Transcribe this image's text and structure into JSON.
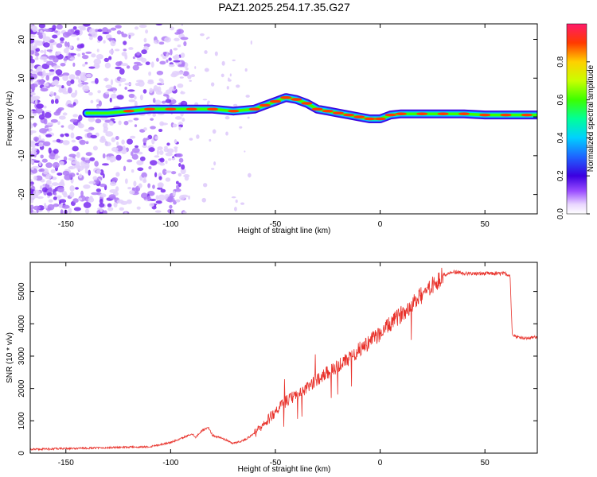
{
  "title": "PAZ1.2025.254.17.35.G27",
  "chart_data": [
    {
      "type": "heatmap",
      "title": "PAZ1.2025.254.17.35.G27",
      "xlabel": "Height of straight line (km)",
      "ylabel": "Frequency (Hz)",
      "xlim": [
        -167,
        75
      ],
      "ylim": [
        -25,
        24
      ],
      "xticks": [
        -150,
        -100,
        -50,
        0,
        50
      ],
      "yticks": [
        20,
        10,
        0,
        -10,
        -20
      ],
      "ridge": {
        "description": "dominant frequency track",
        "x": [
          -140,
          -130,
          -120,
          -110,
          -100,
          -90,
          -80,
          -70,
          -60,
          -55,
          -50,
          -45,
          -40,
          -35,
          -30,
          -25,
          -20,
          -15,
          -10,
          -5,
          0,
          5,
          10,
          20,
          30,
          40,
          50,
          60,
          70,
          75
        ],
        "y": [
          1,
          1,
          1.5,
          2,
          2,
          2,
          2,
          1.5,
          2,
          3,
          4,
          5,
          4.5,
          3.5,
          2,
          1.5,
          1,
          0.5,
          0,
          -0.5,
          -0.5,
          0.5,
          0.8,
          0.8,
          0.8,
          0.8,
          0.5,
          0.5,
          0.5,
          0.5
        ]
      },
      "colorbar": {
        "label": "Normalized spectral amplitude",
        "ticks": [
          "0.0",
          "0.2",
          "0.4",
          "0.6",
          "0.8"
        ],
        "range": [
          0,
          1
        ]
      }
    },
    {
      "type": "line",
      "xlabel": "Height of straight line (km)",
      "ylabel": "SNR (10 * v/v)",
      "xlim": [
        -167,
        75
      ],
      "ylim": [
        0,
        5900
      ],
      "xticks": [
        -150,
        -100,
        -50,
        0,
        50
      ],
      "yticks": [
        0,
        1000,
        2000,
        3000,
        4000,
        5000
      ],
      "color": "#e8312a",
      "series": [
        {
          "x": [
            -167,
            -150,
            -130,
            -110,
            -100,
            -95,
            -90,
            -88,
            -85,
            -82,
            -80,
            -75,
            -70,
            -65,
            -60,
            -55,
            -50,
            -45,
            -40,
            -35,
            -30,
            -25,
            -20,
            -15,
            -10,
            -5,
            0,
            5,
            10,
            15,
            20,
            25,
            30,
            35,
            40,
            50,
            60,
            62,
            63,
            65,
            70,
            75
          ],
          "y": [
            120,
            140,
            170,
            200,
            330,
            450,
            600,
            500,
            700,
            800,
            550,
            450,
            300,
            400,
            600,
            900,
            1300,
            1600,
            1800,
            2000,
            2300,
            2500,
            2700,
            2900,
            3200,
            3450,
            3700,
            4000,
            4300,
            4600,
            4900,
            5200,
            5500,
            5600,
            5550,
            5550,
            5550,
            5500,
            3700,
            3600,
            3550,
            3600
          ]
        }
      ]
    }
  ]
}
